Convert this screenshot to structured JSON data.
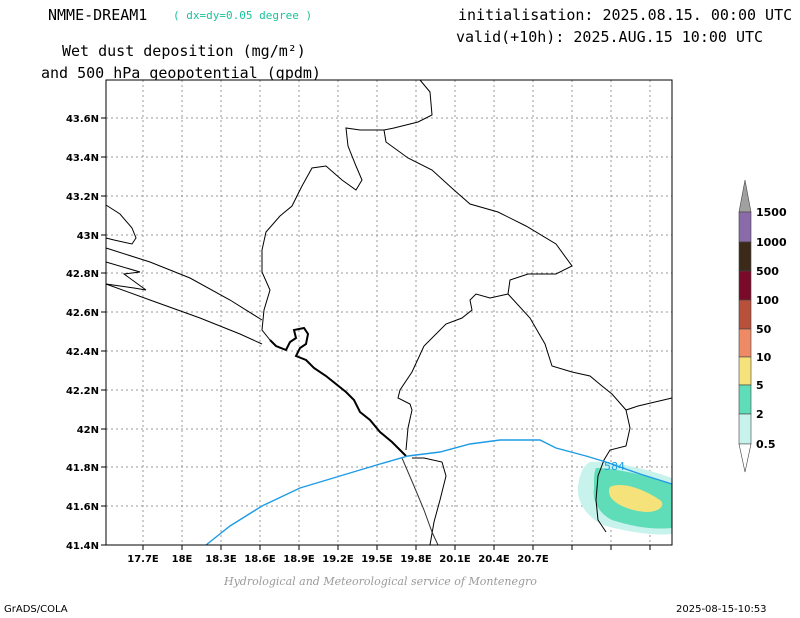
{
  "header": {
    "model": "NMME-DREAM1",
    "resolution": "( dx=dy=0.05 degree )",
    "title_line1": "Wet dust deposition (mg/m²)",
    "title_line2": "and 500 hPa geopotential (gpdm)",
    "initialisation": "initialisation: 2025.08.15. 00:00 UTC",
    "valid": "valid(+10h): 2025.AUG.15 10:00 UTC"
  },
  "map": {
    "lon_ticks": [
      "17.7E",
      "18E",
      "18.3E",
      "18.6E",
      "18.9E",
      "19.2E",
      "19.5E",
      "19.8E",
      "20.1E",
      "20.4E",
      "20.7E"
    ],
    "lat_ticks": [
      "43.6N",
      "43.4N",
      "43.2N",
      "43N",
      "42.8N",
      "42.6N",
      "42.4N",
      "42.2N",
      "42N",
      "41.8N",
      "41.6N",
      "41.4N"
    ],
    "contour_label": "584",
    "contour_color": "#1e9be6",
    "border_color": "#000000",
    "grid": true
  },
  "colorbar": {
    "levels": [
      "1500",
      "1000",
      "500",
      "100",
      "50",
      "10",
      "5",
      "2",
      "0.5"
    ],
    "colors": [
      "#8a6aa8",
      "#3b2a1a",
      "#7a0a2a",
      "#b8503c",
      "#ee8a66",
      "#f5e27a",
      "#5fdcb8",
      "#c8f2ec"
    ]
  },
  "footer": {
    "credit": "Hydrological and Meteorological service of Montenegro",
    "left": "GrADS/COLA",
    "right": "2025-08-15-10:53"
  }
}
